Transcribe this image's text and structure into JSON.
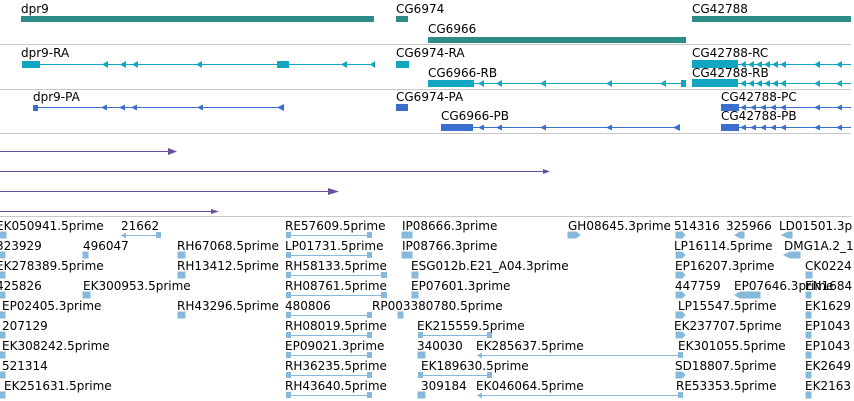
{
  "colors": {
    "gene": "#2e8b87",
    "mrna": "#10a6c0",
    "protein": "#3a6fcf",
    "transposon": "#6b4fa0",
    "est": "#87b9dc",
    "separator": "#c8c8c8"
  },
  "tracks": {
    "genes": {
      "features": [
        {
          "label": "dpr9"
        },
        {
          "label": "CG6974"
        },
        {
          "label": "CG6966"
        },
        {
          "label": "CG42788"
        }
      ]
    },
    "transcripts": {
      "features": [
        {
          "label": "dpr9-RA"
        },
        {
          "label": "CG6974-RA"
        },
        {
          "label": "CG6966-RB"
        },
        {
          "label": "CG42788-RC"
        },
        {
          "label": "CG42788-RB"
        }
      ]
    },
    "proteins": {
      "features": [
        {
          "label": "dpr9-PA"
        },
        {
          "label": "CG6974-PA"
        },
        {
          "label": "CG6966-PB"
        },
        {
          "label": "CG42788-PC"
        },
        {
          "label": "CG42788-PB"
        }
      ]
    },
    "ests": {
      "rows": [
        [
          "EK050941.5prime",
          "21662",
          "RE57609.5prime",
          "IP08666.3prime",
          "GH08645.3prime",
          "514316",
          "325966",
          "LD01501.3p"
        ],
        [
          "323929",
          "496047",
          "RH67068.5prime",
          "LP01731.5prime",
          "IP08766.3prime",
          "LP16114.5prime",
          "DMG1A.2_1"
        ],
        [
          "EK278389.5prime",
          "RH13412.5prime",
          "RH58133.5prime",
          "ESG012b.E21_A04.3prime",
          "EP16207.3prime",
          "CK0224"
        ],
        [
          "425826",
          "EK300953.5prime",
          "RH08761.5prime",
          "EP07601.3prime",
          "447759",
          "EP07646.3prime",
          "EN1684"
        ],
        [
          "EP02405.3prime",
          "RH43296.5prime",
          "480806",
          "RP003380780.5prime",
          "LP15547.5prime",
          "EK1629"
        ],
        [
          "207129",
          "RH08019.5prime",
          "EK215559.5prime",
          "EK237707.5prime",
          "EP1043"
        ],
        [
          "EK308242.5prime",
          "EP09021.3prime",
          "340030",
          "EK285637.5prime",
          "EK301055.5prime",
          "EP1043"
        ],
        [
          "521314",
          "RH36235.5prime",
          "EK189630.5prime",
          "SD18807.5prime",
          "EK2649"
        ],
        [
          "EK251631.5prime",
          "RH43640.5prime",
          "309184",
          "EK046064.5prime",
          "RE53353.5prime",
          "EK2163"
        ]
      ]
    }
  }
}
